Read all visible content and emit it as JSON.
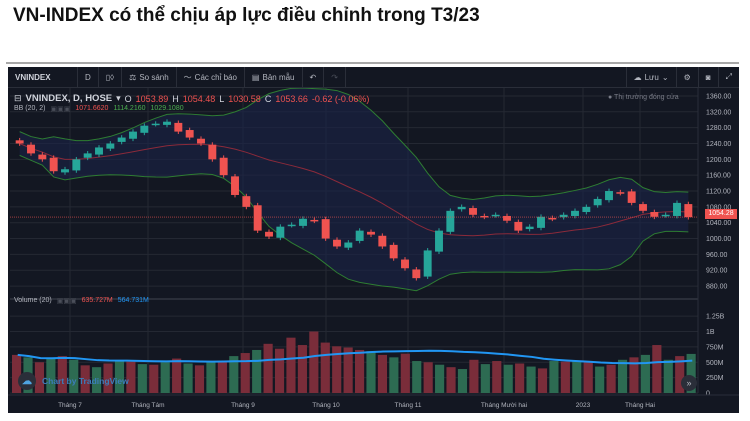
{
  "article": {
    "title": "VN-INDEX có thể chịu áp lực điều chỉnh trong T3/23"
  },
  "toolbar": {
    "symbol": "VNINDEX",
    "interval": "D",
    "candle_icon": "candle-icon",
    "compare_label": "So sánh",
    "indicators_label": "Các chỉ báo",
    "templates_label": "Bản mẫu",
    "undo_icon": "↶",
    "redo_icon": "↷",
    "save_label": "Lưu",
    "settings_icon": "⚙",
    "camera_icon": "📷",
    "fullscreen_icon": "⤢"
  },
  "legend": {
    "symbol_line": "VNINDEX, D, HOSE",
    "open_label": "O",
    "open": "1053.89",
    "high_label": "H",
    "high": "1054.48",
    "low_label": "L",
    "low": "1030.58",
    "close_label": "C",
    "close": "1053.66",
    "change": "-0.62 (-0.06%)",
    "bb_label": "BB (20, 2)",
    "bb_basis": "1071.6620",
    "bb_upper": "1114.2160",
    "bb_lower": "1029.1080",
    "market_status": "● Thị trường đóng cửa",
    "current_price_tag": "1054.28"
  },
  "volume_legend": {
    "label": "Volume (20)",
    "volume": "635.727M",
    "ma": "564.731M"
  },
  "branding": {
    "text": "Chart by TradingView",
    "scroll_icon": "»"
  },
  "colors": {
    "background": "#131722",
    "up": "#26a69a",
    "down": "#ef5350",
    "bb_band": "#2e7d32",
    "bb_basis": "#8b2a3a",
    "vol_ma": "#2196f3"
  },
  "chart_data": [
    {
      "type": "candlestick",
      "title": "VNINDEX, D, HOSE",
      "xlabel": "",
      "ylabel": "",
      "x_ticks": [
        "Tháng 7",
        "Tháng Tám",
        "Tháng 9",
        "Tháng 10",
        "Tháng 11",
        "Tháng Mười hai",
        "2023",
        "Tháng Hai"
      ],
      "y_ticks": [
        880,
        920,
        960,
        1000,
        1040,
        1080,
        1120,
        1160,
        1200,
        1240,
        1280,
        1320,
        1360
      ],
      "ylim": [
        860,
        1370
      ],
      "grid": true,
      "approx_close": [
        1240,
        1215,
        1200,
        1170,
        1175,
        1200,
        1215,
        1230,
        1240,
        1255,
        1270,
        1285,
        1290,
        1295,
        1270,
        1255,
        1240,
        1200,
        1160,
        1110,
        1080,
        1020,
        1005,
        1030,
        1035,
        1050,
        1045,
        1000,
        980,
        990,
        1020,
        1010,
        980,
        950,
        925,
        900,
        970,
        1020,
        1070,
        1080,
        1060,
        1055,
        1060,
        1045,
        1020,
        1030,
        1055,
        1050,
        1060,
        1070,
        1080,
        1100,
        1120,
        1115,
        1090,
        1070,
        1055,
        1060,
        1090,
        1054
      ],
      "last": {
        "open": 1053.89,
        "high": 1054.48,
        "low": 1030.58,
        "close": 1053.66,
        "change": -0.62,
        "change_pct": -0.06
      },
      "bollinger": {
        "period": 20,
        "mult": 2,
        "basis": 1071.662,
        "upper": 1114.216,
        "lower": 1029.108
      }
    },
    {
      "type": "bar",
      "title": "Volume (20)",
      "y_ticks": [
        "0",
        "250M",
        "500M",
        "750M",
        "1B",
        "1.25B"
      ],
      "ylim": [
        0,
        1350
      ],
      "unit": "M",
      "approx_values": [
        620,
        580,
        500,
        560,
        600,
        540,
        450,
        420,
        480,
        520,
        510,
        470,
        460,
        500,
        560,
        480,
        450,
        500,
        520,
        600,
        650,
        700,
        800,
        720,
        900,
        780,
        1000,
        820,
        760,
        740,
        700,
        680,
        620,
        580,
        640,
        520,
        500,
        460,
        420,
        390,
        540,
        470,
        520,
        460,
        480,
        430,
        400,
        520,
        510,
        520,
        500,
        430,
        460,
        540,
        580,
        620,
        780,
        540,
        600,
        635.727
      ],
      "ma_value": 564.731,
      "volume_value": 635.727
    }
  ]
}
